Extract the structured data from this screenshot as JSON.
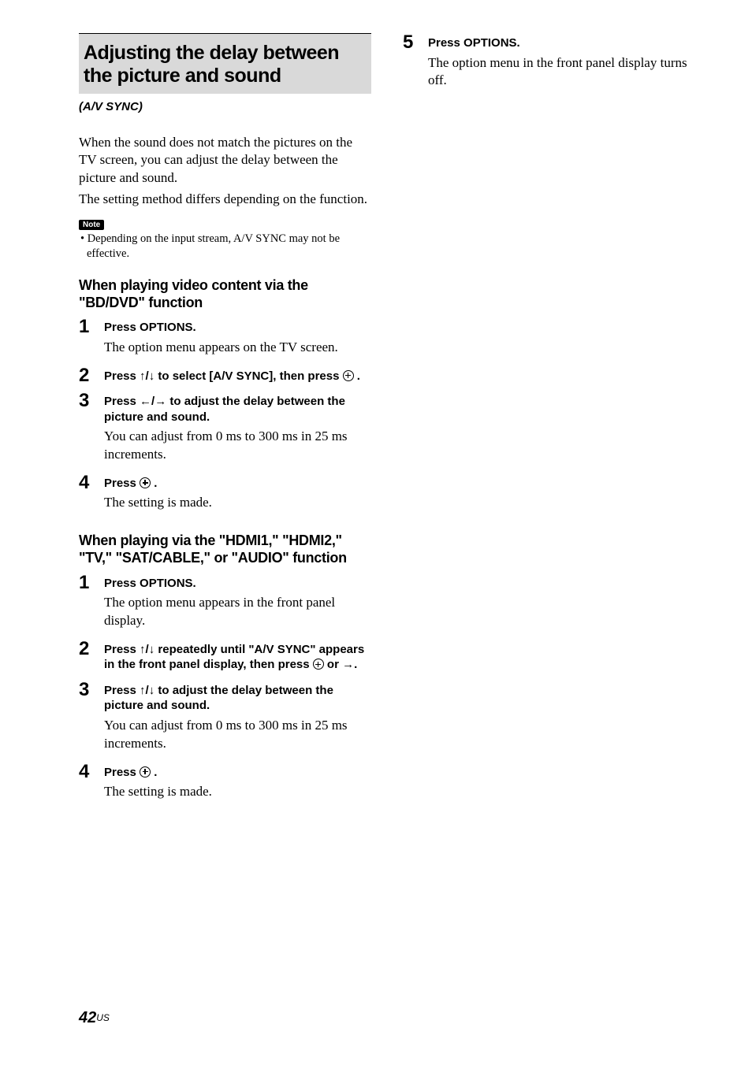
{
  "section": {
    "title": "Adjusting the delay between the picture and sound",
    "subtitle": "(A/V SYNC)",
    "intro1": "When the sound does not match the pictures on the TV screen, you can adjust the delay between the picture and sound.",
    "intro2": "The setting method differs depending on the function.",
    "note_label": "Note",
    "note_text": "• Depending on the input stream, A/V SYNC may not be effective."
  },
  "sub1": {
    "heading": "When playing video content via the \"BD/DVD\" function",
    "steps": [
      {
        "num": "1",
        "instr": "Press OPTIONS.",
        "desc": "The option menu appears on the TV screen."
      },
      {
        "num": "2",
        "instr_pre": "Press ",
        "arrows": "↑/↓",
        "instr_post": " to select [A/V SYNC], then press ",
        "enter": true,
        "instr_tail": " ."
      },
      {
        "num": "3",
        "instr_pre": "Press ",
        "arrows": "←/→",
        "instr_post": " to adjust the delay between the picture and sound.",
        "desc": "You can adjust from 0 ms to 300 ms in 25 ms increments."
      },
      {
        "num": "4",
        "instr_pre": "Press ",
        "enter": true,
        "instr_tail": " .",
        "desc": "The setting is made."
      }
    ]
  },
  "sub2": {
    "heading": "When playing via the \"HDMI1,\" \"HDMI2,\" \"TV,\" \"SAT/CABLE,\" or \"AUDIO\" function",
    "steps": [
      {
        "num": "1",
        "instr": "Press OPTIONS.",
        "desc": "The option menu appears in the front panel display."
      },
      {
        "num": "2",
        "instr_pre": "Press ",
        "arrows": "↑/↓",
        "instr_post": " repeatedly until \"A/V SYNC\" appears in the front panel display, then press ",
        "enter": true,
        "instr_tail": " or →."
      },
      {
        "num": "3",
        "instr_pre": "Press ",
        "arrows": "↑/↓",
        "instr_post": " to adjust the delay between the picture and sound.",
        "desc": "You can adjust from 0 ms to 300 ms in 25 ms increments."
      },
      {
        "num": "4",
        "instr_pre": "Press ",
        "enter": true,
        "instr_tail": " .",
        "desc": "The setting is made."
      }
    ]
  },
  "right": {
    "step": {
      "num": "5",
      "instr": "Press OPTIONS.",
      "desc": "The option menu in the front panel display turns off."
    }
  },
  "page": {
    "num": "42",
    "region": "US"
  }
}
